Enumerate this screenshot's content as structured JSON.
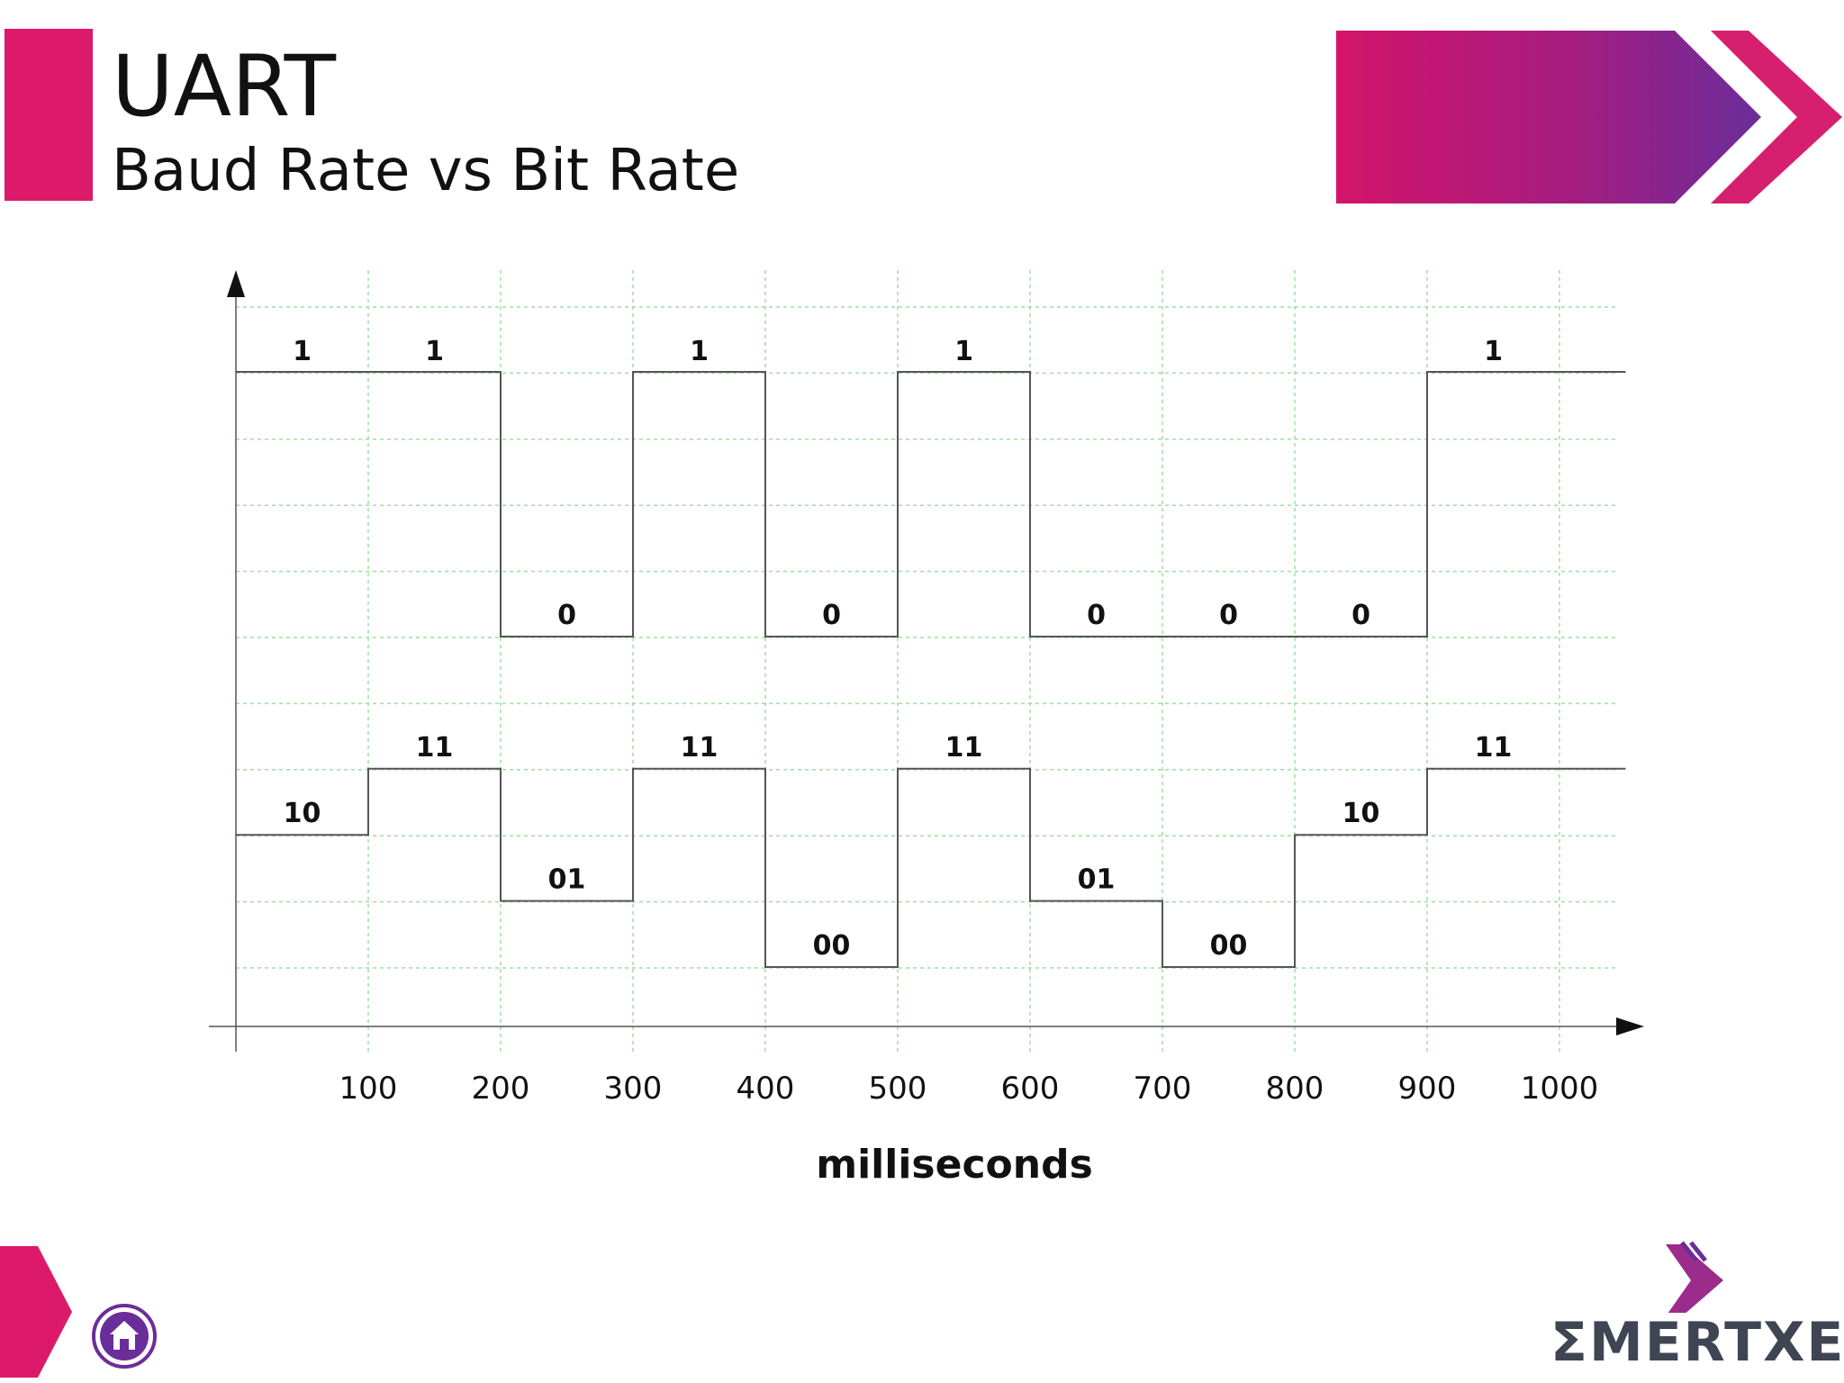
{
  "slide": {
    "title": "UART",
    "subtitle": "Baud Rate vs Bit Rate",
    "logo_text": "ƩMERTXE",
    "colors": {
      "accent": "#dd1a6a",
      "purple": "#6b2d9a",
      "grid": "#9fdf9f",
      "line": "#555555"
    },
    "icons": {
      "home": "home-icon"
    }
  },
  "chart_data": {
    "type": "line",
    "xlabel": "milliseconds",
    "x_ticks": [
      100,
      200,
      300,
      400,
      500,
      600,
      700,
      800,
      900,
      1000
    ],
    "xlim": [
      0,
      1050
    ],
    "series": [
      {
        "bit_width_ms": 100,
        "levels": [
          1,
          1,
          0,
          1,
          0,
          1,
          0,
          0,
          0,
          1
        ],
        "labels": [
          "1",
          "1",
          "0",
          "1",
          "0",
          "1",
          "0",
          "0",
          "0",
          "1"
        ]
      },
      {
        "symbol_width_ms": 100,
        "levels": [
          2,
          3,
          1,
          3,
          0,
          3,
          1,
          0,
          2,
          3
        ],
        "labels": [
          "10",
          "11",
          "01",
          "11",
          "00",
          "11",
          "01",
          "00",
          "10",
          "11"
        ]
      }
    ]
  }
}
